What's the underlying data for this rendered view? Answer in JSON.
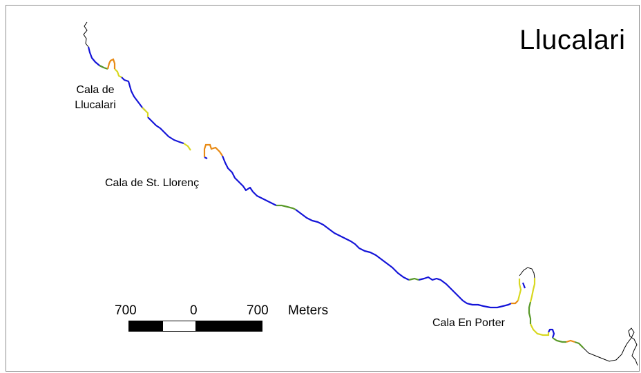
{
  "map": {
    "title": "Llucalari",
    "place_labels": {
      "cala_llucalari": "Cala de\nLlucalari",
      "cala_llorenc": "Cala de St. Llorenç",
      "cala_porter": "Cala En Porter"
    },
    "scale_bar": {
      "left_value": "700",
      "center_value": "0",
      "right_value": "700",
      "units": "Meters"
    },
    "coast_colors": {
      "main": "#1414d8",
      "green": "#5a9a2a",
      "yellow": "#d8d820",
      "orange": "#e88a14",
      "unclassified": "#000000"
    }
  }
}
